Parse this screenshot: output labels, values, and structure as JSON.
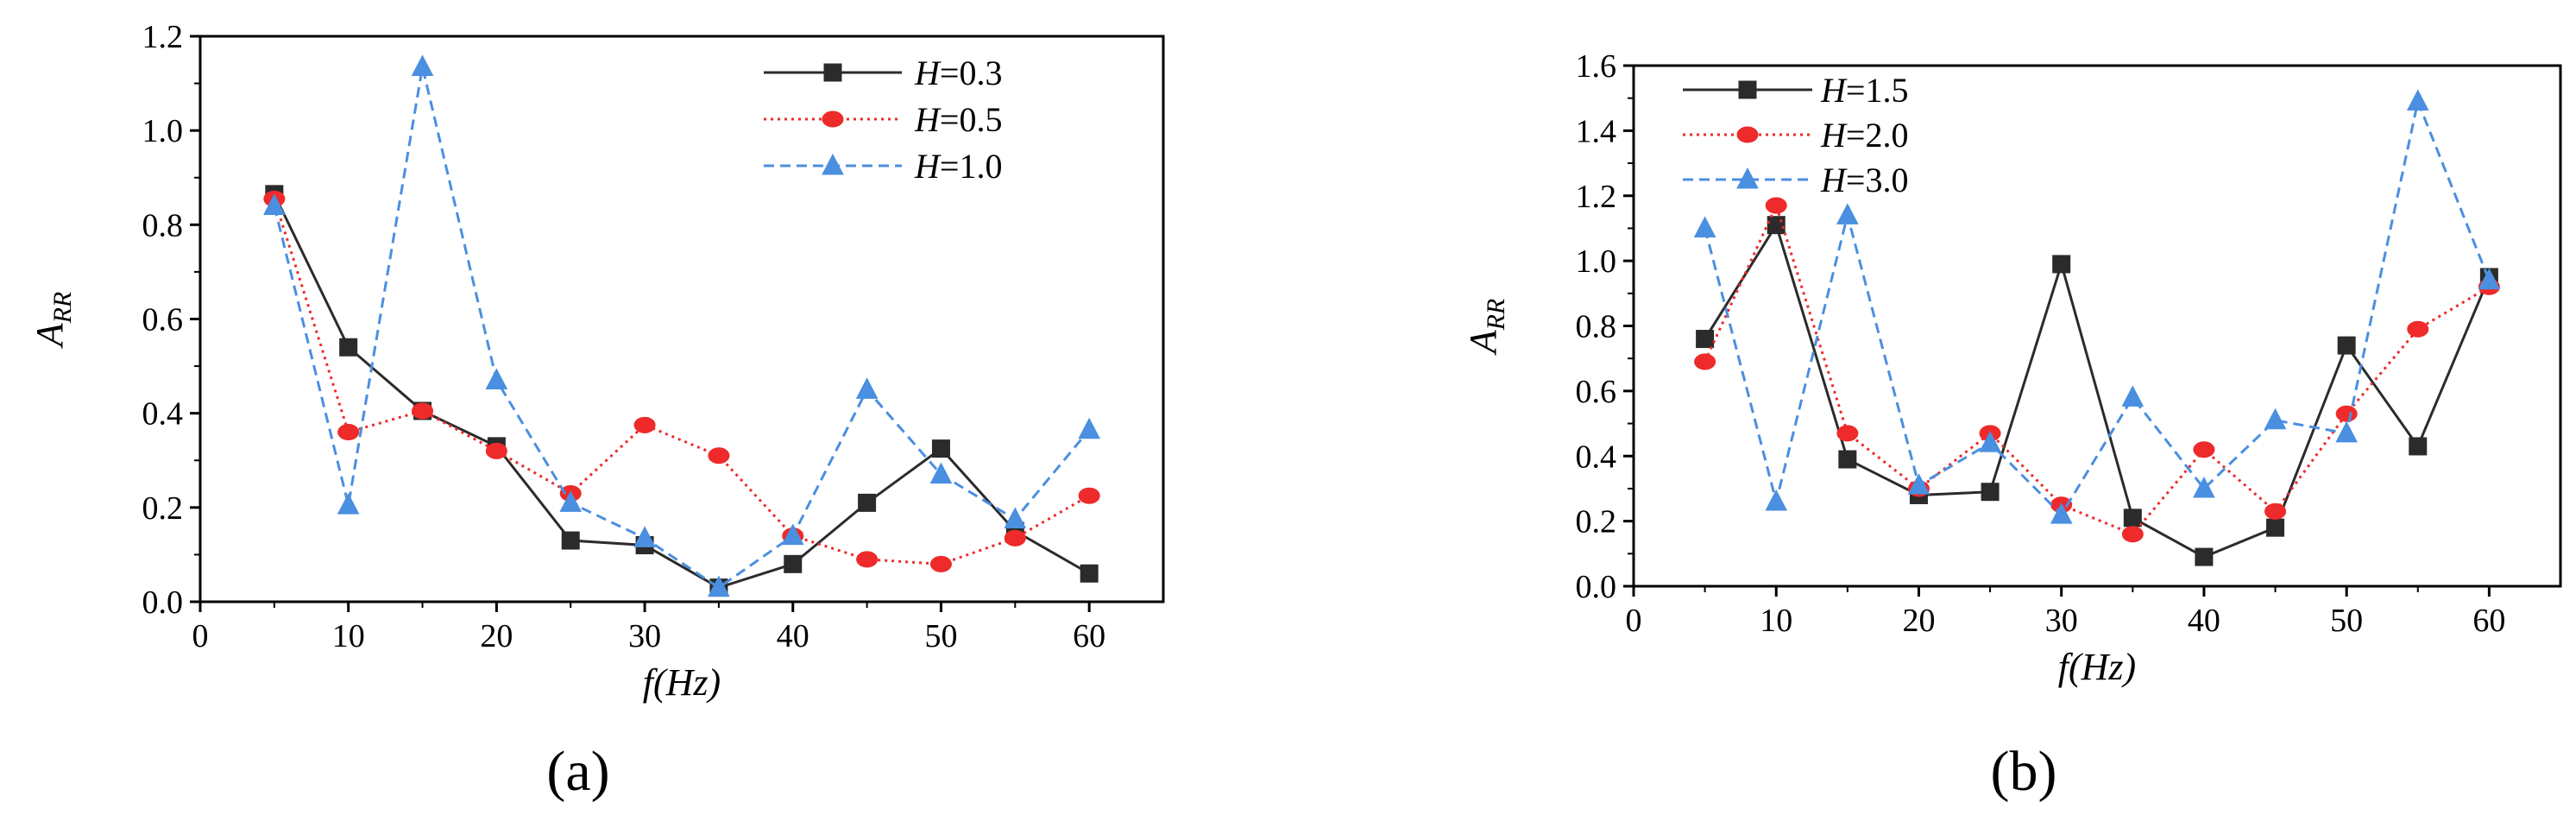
{
  "panels": [
    {
      "panel_label": "(a)",
      "chart_data": {
        "type": "line",
        "xlabel": "f(Hz)",
        "ylabel": "A",
        "ylabel_sub": "RR",
        "xlim": [
          0,
          65
        ],
        "ylim": [
          0,
          1.2
        ],
        "xticks": [
          {
            "value": 0,
            "label": "0"
          },
          {
            "value": 10,
            "label": "10"
          },
          {
            "value": 20,
            "label": "20"
          },
          {
            "value": 30,
            "label": "30"
          },
          {
            "value": 40,
            "label": "40"
          },
          {
            "value": 50,
            "label": "50"
          },
          {
            "value": 60,
            "label": "60"
          }
        ],
        "yticks": [
          {
            "value": 0,
            "label": "0.0"
          },
          {
            "value": 0.2,
            "label": "0.2"
          },
          {
            "value": 0.4,
            "label": "0.4"
          },
          {
            "value": 0.6,
            "label": "0.6"
          },
          {
            "value": 0.8,
            "label": "0.8"
          },
          {
            "value": 1.0,
            "label": "1.0"
          },
          {
            "value": 1.2,
            "label": "1.2"
          }
        ],
        "x": [
          5,
          10,
          15,
          20,
          25,
          30,
          35,
          40,
          45,
          50,
          55,
          60
        ],
        "legend_position": "top-right",
        "series": [
          {
            "var": "H",
            "eq": "=0.3",
            "color": "#2b2b2b",
            "dash": "solid",
            "marker": "square",
            "values": [
              0.865,
              0.54,
              0.405,
              0.33,
              0.13,
              0.12,
              0.03,
              0.08,
              0.21,
              0.325,
              0.15,
              0.06
            ]
          },
          {
            "var": "H",
            "eq": "=0.5",
            "color": "#ee2a2a",
            "dash": "dotted",
            "marker": "circle",
            "values": [
              0.855,
              0.36,
              0.405,
              0.32,
              0.23,
              0.375,
              0.31,
              0.14,
              0.09,
              0.08,
              0.135,
              0.225
            ]
          },
          {
            "var": "H",
            "eq": "=1.0",
            "color": "#4a8fe0",
            "dash": "dashed",
            "marker": "triangle",
            "values": [
              0.84,
              0.205,
              1.135,
              0.47,
              0.21,
              0.135,
              0.03,
              0.14,
              0.45,
              0.27,
              0.175,
              0.365
            ]
          }
        ]
      }
    },
    {
      "panel_label": "(b)",
      "chart_data": {
        "type": "line",
        "xlabel": "f(Hz)",
        "ylabel": "A",
        "ylabel_sub": "RR",
        "xlim": [
          0,
          65
        ],
        "ylim": [
          0,
          1.6
        ],
        "xticks": [
          {
            "value": 0,
            "label": "0"
          },
          {
            "value": 10,
            "label": "10"
          },
          {
            "value": 20,
            "label": "20"
          },
          {
            "value": 30,
            "label": "30"
          },
          {
            "value": 40,
            "label": "40"
          },
          {
            "value": 50,
            "label": "50"
          },
          {
            "value": 60,
            "label": "60"
          }
        ],
        "yticks": [
          {
            "value": 0,
            "label": "0.0"
          },
          {
            "value": 0.2,
            "label": "0.2"
          },
          {
            "value": 0.4,
            "label": "0.4"
          },
          {
            "value": 0.6,
            "label": "0.6"
          },
          {
            "value": 0.8,
            "label": "0.8"
          },
          {
            "value": 1.0,
            "label": "1.0"
          },
          {
            "value": 1.2,
            "label": "1.2"
          },
          {
            "value": 1.4,
            "label": "1.4"
          },
          {
            "value": 1.6,
            "label": "1.6"
          }
        ],
        "x": [
          5,
          10,
          15,
          20,
          25,
          30,
          35,
          40,
          45,
          50,
          55,
          60
        ],
        "legend_position": "top-left",
        "series": [
          {
            "var": "H",
            "eq": "=1.5",
            "color": "#2b2b2b",
            "dash": "solid",
            "marker": "square",
            "values": [
              0.76,
              1.11,
              0.39,
              0.28,
              0.29,
              0.99,
              0.21,
              0.09,
              0.18,
              0.74,
              0.43,
              0.95
            ]
          },
          {
            "var": "H",
            "eq": "=2.0",
            "color": "#ee2a2a",
            "dash": "dotted",
            "marker": "circle",
            "values": [
              0.69,
              1.17,
              0.47,
              0.3,
              0.47,
              0.25,
              0.16,
              0.42,
              0.23,
              0.53,
              0.79,
              0.92
            ]
          },
          {
            "var": "H",
            "eq": "=3.0",
            "color": "#4a8fe0",
            "dash": "dashed",
            "marker": "triangle",
            "values": [
              1.1,
              0.26,
              1.14,
              0.31,
              0.44,
              0.22,
              0.58,
              0.3,
              0.51,
              0.47,
              1.49,
              0.94
            ]
          }
        ]
      }
    }
  ]
}
